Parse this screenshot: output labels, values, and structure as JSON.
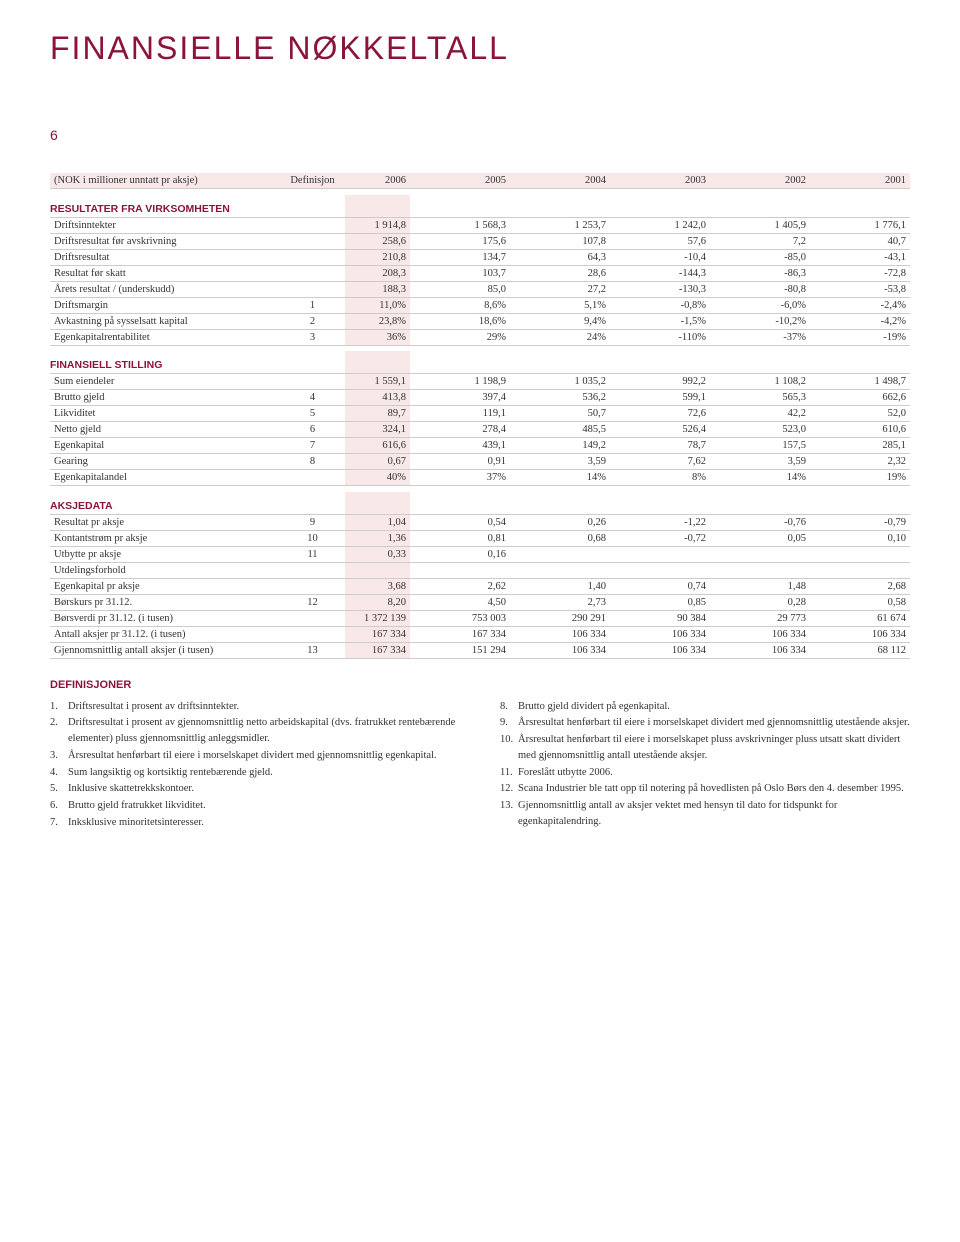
{
  "title": "FINANSIELLE NØKKELTALL",
  "page_number": "6",
  "colors": {
    "brand": "#8b1538",
    "highlight_bg": "#f8e8e8",
    "border": "#cccccc",
    "background": "#ffffff"
  },
  "typography": {
    "title_fontsize": 32,
    "title_weight": 300,
    "title_letter_spacing": "2px",
    "body_fontsize": 10.5,
    "definitions_fontsize": 10.5
  },
  "table": {
    "header": {
      "label": "(NOK i millioner unntatt pr aksje)",
      "def": "Definisjon",
      "years": [
        "2006",
        "2005",
        "2004",
        "2003",
        "2002",
        "2001"
      ]
    },
    "sections": [
      {
        "title": "RESULTATER FRA VIRKSOMHETEN",
        "rows": [
          {
            "label": "Driftsinntekter",
            "def": "",
            "v": [
              "1 914,8",
              "1 568,3",
              "1 253,7",
              "1 242,0",
              "1 405,9",
              "1 776,1"
            ]
          },
          {
            "label": "Driftsresultat før avskrivning",
            "def": "",
            "v": [
              "258,6",
              "175,6",
              "107,8",
              "57,6",
              "7,2",
              "40,7"
            ]
          },
          {
            "label": "Driftsresultat",
            "def": "",
            "v": [
              "210,8",
              "134,7",
              "64,3",
              "-10,4",
              "-85,0",
              "-43,1"
            ]
          },
          {
            "label": "Resultat før skatt",
            "def": "",
            "v": [
              "208,3",
              "103,7",
              "28,6",
              "-144,3",
              "-86,3",
              "-72,8"
            ]
          },
          {
            "label": "Årets resultat / (underskudd)",
            "def": "",
            "v": [
              "188,3",
              "85,0",
              "27,2",
              "-130,3",
              "-80,8",
              "-53,8"
            ]
          },
          {
            "label": "Driftsmargin",
            "def": "1",
            "v": [
              "11,0%",
              "8,6%",
              "5,1%",
              "-0,8%",
              "-6,0%",
              "-2,4%"
            ]
          },
          {
            "label": "Avkastning på sysselsatt kapital",
            "def": "2",
            "v": [
              "23,8%",
              "18,6%",
              "9,4%",
              "-1,5%",
              "-10,2%",
              "-4,2%"
            ]
          },
          {
            "label": "Egenkapitalrentabilitet",
            "def": "3",
            "v": [
              "36%",
              "29%",
              "24%",
              "-110%",
              "-37%",
              "-19%"
            ]
          }
        ]
      },
      {
        "title": "FINANSIELL STILLING",
        "rows": [
          {
            "label": "Sum eiendeler",
            "def": "",
            "v": [
              "1 559,1",
              "1 198,9",
              "1 035,2",
              "992,2",
              "1 108,2",
              "1 498,7"
            ]
          },
          {
            "label": "Brutto gjeld",
            "def": "4",
            "v": [
              "413,8",
              "397,4",
              "536,2",
              "599,1",
              "565,3",
              "662,6"
            ]
          },
          {
            "label": "Likviditet",
            "def": "5",
            "v": [
              "89,7",
              "119,1",
              "50,7",
              "72,6",
              "42,2",
              "52,0"
            ]
          },
          {
            "label": "Netto gjeld",
            "def": "6",
            "v": [
              "324,1",
              "278,4",
              "485,5",
              "526,4",
              "523,0",
              "610,6"
            ]
          },
          {
            "label": "Egenkapital",
            "def": "7",
            "v": [
              "616,6",
              "439,1",
              "149,2",
              "78,7",
              "157,5",
              "285,1"
            ]
          },
          {
            "label": "Gearing",
            "def": "8",
            "v": [
              "0,67",
              "0,91",
              "3,59",
              "7,62",
              "3,59",
              "2,32"
            ]
          },
          {
            "label": "Egenkapitalandel",
            "def": "",
            "v": [
              "40%",
              "37%",
              "14%",
              "8%",
              "14%",
              "19%"
            ]
          }
        ]
      },
      {
        "title": "AKSJEDATA",
        "rows": [
          {
            "label": "Resultat pr aksje",
            "def": "9",
            "v": [
              "1,04",
              "0,54",
              "0,26",
              "-1,22",
              "-0,76",
              "-0,79"
            ]
          },
          {
            "label": "Kontantstrøm pr aksje",
            "def": "10",
            "v": [
              "1,36",
              "0,81",
              "0,68",
              "-0,72",
              "0,05",
              "0,10"
            ]
          },
          {
            "label": "Utbytte pr aksje",
            "def": "11",
            "v": [
              "0,33",
              "0,16",
              "",
              "",
              "",
              ""
            ]
          },
          {
            "label": "Utdelingsforhold",
            "def": "",
            "v": [
              "",
              "",
              "",
              "",
              "",
              ""
            ]
          },
          {
            "label": "Egenkapital pr aksje",
            "def": "",
            "v": [
              "3,68",
              "2,62",
              "1,40",
              "0,74",
              "1,48",
              "2,68"
            ]
          },
          {
            "label": "Børskurs pr 31.12.",
            "def": "12",
            "v": [
              "8,20",
              "4,50",
              "2,73",
              "0,85",
              "0,28",
              "0,58"
            ]
          },
          {
            "label": "Børsverdi pr 31.12. (i tusen)",
            "def": "",
            "v": [
              "1 372 139",
              "753 003",
              "290 291",
              "90 384",
              "29 773",
              "61 674"
            ]
          },
          {
            "label": "Antall aksjer pr 31.12. (i tusen)",
            "def": "",
            "v": [
              "167 334",
              "167 334",
              "106 334",
              "106 334",
              "106 334",
              "106 334"
            ]
          },
          {
            "label": "Gjennomsnittlig antall aksjer (i tusen)",
            "def": "13",
            "v": [
              "167 334",
              "151 294",
              "106 334",
              "106 334",
              "106 334",
              "68 112"
            ]
          }
        ]
      }
    ]
  },
  "definitions": {
    "title": "DEFINISJONER",
    "left": [
      {
        "n": "1.",
        "t": "Driftsresultat i prosent av driftsinntekter."
      },
      {
        "n": "2.",
        "t": "Driftsresultat i prosent av gjennomsnittlig netto arbeidskapital (dvs. fratrukket rentebærende elementer) pluss gjennomsnittlig anleggsmidler."
      },
      {
        "n": "3.",
        "t": "Årsresultat henførbart til eiere i morselskapet dividert med gjennomsnittlig egenkapital."
      },
      {
        "n": "4.",
        "t": "Sum langsiktig og kortsiktig rentebærende gjeld."
      },
      {
        "n": "5.",
        "t": "Inklusive skattetrekkskontoer."
      },
      {
        "n": "6.",
        "t": "Brutto gjeld fratrukket likviditet."
      },
      {
        "n": "7.",
        "t": "Inksklusive minoritetsinteresser."
      }
    ],
    "right": [
      {
        "n": "8.",
        "t": "Brutto gjeld dividert på egenkapital."
      },
      {
        "n": "9.",
        "t": "Årsresultat henførbart til eiere i morselskapet dividert med gjennomsnittlig utestående aksjer."
      },
      {
        "n": "10.",
        "t": "Årsresultat henførbart til eiere i morselskapet pluss avskrivninger pluss utsatt skatt dividert med gjennomsnittlig antall utestående aksjer."
      },
      {
        "n": "11.",
        "t": "Foreslått utbytte 2006."
      },
      {
        "n": "12.",
        "t": "Scana Industrier ble tatt opp til notering på hovedlisten på Oslo Børs den 4. desember 1995."
      },
      {
        "n": "13.",
        "t": "Gjennomsnittlig antall av aksjer vektet med hensyn til dato for tidspunkt for egenkapitalendring."
      }
    ]
  }
}
